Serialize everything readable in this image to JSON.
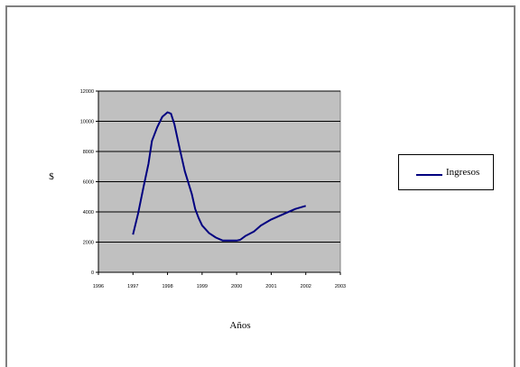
{
  "chart_data": {
    "type": "line",
    "title": "",
    "xlabel": "Años",
    "ylabel": "$",
    "xlim": [
      1996,
      2003
    ],
    "ylim": [
      0,
      12000
    ],
    "x_tick_labels": [
      "1996",
      "1997",
      "1998",
      "1999",
      "2000",
      "2001",
      "2002",
      "2003"
    ],
    "y_tick_labels": [
      "0",
      "2000",
      "4000",
      "6000",
      "8000",
      "10000",
      "12000"
    ],
    "grid": "horizontal",
    "legend_position": "right",
    "plot_background": "#c0c0c0",
    "series": [
      {
        "name": "Ingresos",
        "color": "#000080",
        "x": [
          1997.0,
          1997.15,
          1997.3,
          1997.45,
          1997.55,
          1997.7,
          1997.85,
          1998.0,
          1998.1,
          1998.2,
          1998.35,
          1998.5,
          1998.7,
          1998.8,
          1998.9,
          1999.0,
          1999.2,
          1999.4,
          1999.6,
          1999.8,
          2000.0,
          2000.1,
          2000.25,
          2000.5,
          2000.7,
          2001.0,
          2001.4,
          2001.7,
          2002.0
        ],
        "y": [
          2500,
          3900,
          5600,
          7200,
          8700,
          9600,
          10300,
          10600,
          10500,
          9800,
          8200,
          6700,
          5200,
          4200,
          3600,
          3100,
          2600,
          2300,
          2100,
          2100,
          2100,
          2150,
          2400,
          2700,
          3100,
          3500,
          3900,
          4200,
          4400
        ]
      }
    ]
  }
}
